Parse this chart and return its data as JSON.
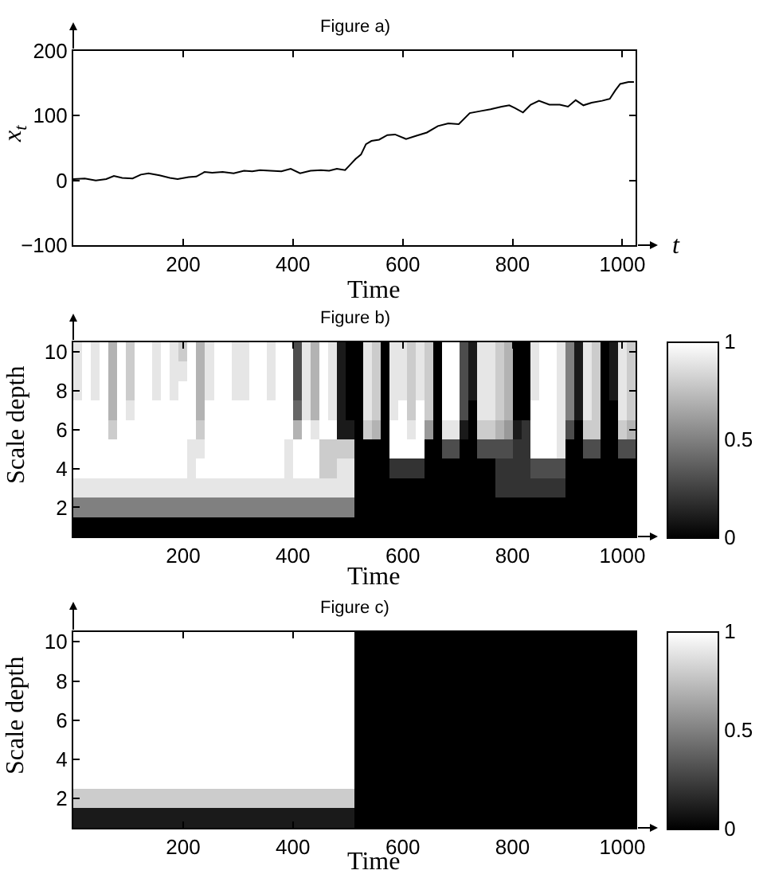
{
  "chart_data": [
    {
      "type": "line",
      "title": "Figure a)",
      "xlabel": "Time",
      "ylabel": "x$_{t}$",
      "annotations": [
        "t"
      ],
      "color": "#000000",
      "line_style": "solid",
      "x": [
        0,
        21,
        41,
        60,
        74,
        89,
        108,
        123,
        137,
        157,
        176,
        190,
        210,
        224,
        239,
        253,
        272,
        292,
        311,
        326,
        340,
        359,
        379,
        396,
        413,
        432,
        451,
        466,
        480,
        495,
        504,
        514,
        524,
        533,
        543,
        557,
        572,
        586,
        606,
        625,
        644,
        664,
        683,
        702,
        722,
        741,
        760,
        780,
        794,
        804,
        819,
        833,
        848,
        867,
        886,
        901,
        915,
        929,
        944,
        963,
        977,
        987,
        996,
        1011,
        1021
      ],
      "values": [
        2,
        3,
        0,
        2,
        7,
        4,
        3,
        9,
        11,
        8,
        4,
        2,
        5,
        6,
        13,
        12,
        13,
        11,
        15,
        14,
        16,
        15,
        14,
        18,
        11,
        15,
        16,
        15,
        18,
        16,
        24,
        33,
        40,
        56,
        61,
        63,
        70,
        71,
        64,
        69,
        74,
        84,
        88,
        87,
        104,
        107,
        110,
        114,
        116,
        112,
        105,
        117,
        123,
        117,
        117,
        114,
        124,
        116,
        120,
        123,
        126,
        139,
        149,
        152,
        152
      ],
      "xlim": [
        0,
        1024
      ],
      "xticks": [
        200,
        400,
        600,
        800,
        1000
      ],
      "ylim": [
        -100,
        200
      ],
      "yticks": [
        -100,
        0,
        100,
        200
      ]
    },
    {
      "type": "heatmap",
      "title": "Figure b)",
      "xlabel": "Time",
      "ylabel": "Scale depth",
      "x": [
        8,
        24,
        40,
        56,
        72,
        88,
        104,
        120,
        136,
        152,
        168,
        184,
        200,
        216,
        232,
        248,
        264,
        280,
        296,
        312,
        328,
        344,
        360,
        376,
        392,
        408,
        424,
        440,
        456,
        472,
        488,
        504,
        520,
        536,
        552,
        568,
        584,
        600,
        616,
        632,
        648,
        664,
        680,
        696,
        712,
        728,
        744,
        760,
        776,
        792,
        808,
        824,
        840,
        856,
        872,
        888,
        904,
        920,
        936,
        952,
        968,
        984,
        1000,
        1016
      ],
      "y_categories": [
        "10",
        null,
        "8",
        null,
        "6",
        null,
        "4",
        null,
        "2",
        null
      ],
      "cells": [
        [
          0.9,
          1,
          0.9,
          1,
          0.7,
          1,
          0.8,
          1,
          1,
          0.9,
          1,
          0.9,
          0.8,
          1,
          0.7,
          0.9,
          1,
          1,
          0.9,
          0.9,
          1,
          1,
          0.9,
          1,
          1,
          0.3,
          0.9,
          0.7,
          1,
          0.9,
          0.1,
          0,
          0,
          0.9,
          0.8,
          0,
          0.9,
          0.9,
          0.8,
          0.9,
          0.8,
          0,
          1,
          1,
          0.3,
          0.1,
          0.9,
          0.9,
          0.8,
          0.7,
          0,
          0,
          0.9,
          1,
          1,
          0.9,
          0.5,
          0.1,
          0.9,
          0.8,
          0,
          0.1,
          0.9,
          0.8
        ],
        [
          0.9,
          1,
          0.9,
          1,
          0.7,
          1,
          0.8,
          1,
          1,
          0.9,
          1,
          0.9,
          0.9,
          1,
          0.7,
          0.9,
          1,
          1,
          0.9,
          0.9,
          1,
          1,
          0.9,
          1,
          1,
          0.3,
          0.9,
          0.7,
          1,
          0.9,
          0.1,
          0,
          0,
          0.9,
          0.8,
          0,
          0.9,
          0.9,
          0.8,
          0.9,
          0.8,
          0,
          1,
          1,
          0.3,
          0.1,
          0.9,
          0.9,
          0.8,
          0.7,
          0,
          0,
          0.9,
          1,
          1,
          0.9,
          0.5,
          0.1,
          0.9,
          0.8,
          0,
          0.1,
          0.9,
          0.8
        ],
        [
          0.9,
          1,
          0.9,
          1,
          0.7,
          1,
          0.8,
          1,
          1,
          0.9,
          1,
          0.9,
          1,
          1,
          0.7,
          0.9,
          1,
          1,
          0.9,
          0.9,
          1,
          1,
          0.9,
          1,
          1,
          0.3,
          0.9,
          0.7,
          1,
          0.9,
          0.1,
          0,
          0,
          0.9,
          0.8,
          0,
          0.9,
          0.9,
          0.8,
          0.9,
          0.8,
          0,
          1,
          1,
          0.3,
          0.1,
          0.9,
          0.9,
          0.8,
          0.7,
          0,
          0,
          0.9,
          1,
          1,
          0.9,
          0.5,
          0.1,
          0.9,
          0.8,
          0,
          0.1,
          0.9,
          0.8
        ],
        [
          1,
          1,
          1,
          1,
          0.7,
          1,
          0.9,
          1,
          1,
          1,
          1,
          1,
          1,
          1,
          0.7,
          1,
          1,
          1,
          1,
          1,
          1,
          1,
          1,
          1,
          1,
          0.4,
          0.9,
          0.7,
          1,
          0.9,
          0.1,
          0,
          0,
          0.9,
          0.8,
          0,
          0.9,
          1,
          0.8,
          1,
          0.8,
          0,
          1,
          1,
          0.3,
          0,
          0.9,
          0.9,
          0.8,
          0.7,
          0,
          0,
          1,
          1,
          1,
          0.9,
          0.5,
          0.1,
          0.9,
          0.8,
          0,
          0,
          0.9,
          0.8
        ],
        [
          1,
          1,
          1,
          1,
          0.8,
          1,
          1,
          1,
          1,
          1,
          1,
          1,
          1,
          1,
          0.8,
          1,
          1,
          1,
          1,
          1,
          1,
          1,
          1,
          1,
          1,
          0.7,
          1,
          0.9,
          1,
          1,
          0.1,
          0.1,
          0,
          0.8,
          0.7,
          0,
          1,
          1,
          0.9,
          1,
          0.6,
          0,
          0.9,
          0.9,
          0.1,
          0,
          0.8,
          0.8,
          0.7,
          0.6,
          0.1,
          0.2,
          1,
          1,
          1,
          0.9,
          0.3,
          0,
          0.8,
          0.8,
          0,
          0,
          0.8,
          0.7
        ],
        [
          1,
          1,
          1,
          1,
          1,
          1,
          1,
          1,
          1,
          1,
          1,
          1,
          1,
          0.9,
          0.9,
          1,
          1,
          1,
          1,
          1,
          1,
          1,
          1,
          1,
          0.9,
          1,
          1,
          1,
          0.8,
          0.8,
          0.8,
          0.8,
          0,
          0,
          0,
          0,
          1,
          1,
          1,
          1,
          0,
          0,
          0.3,
          0.3,
          0,
          0,
          0.3,
          0.3,
          0.3,
          0.3,
          0.2,
          0.2,
          1,
          1,
          1,
          0.9,
          0,
          0,
          0.3,
          0.3,
          0,
          0,
          0.3,
          0.3
        ],
        [
          1,
          1,
          1,
          1,
          1,
          1,
          1,
          1,
          1,
          1,
          1,
          1,
          1,
          0.9,
          1,
          1,
          1,
          1,
          1,
          1,
          1,
          1,
          1,
          1,
          0.9,
          1,
          1,
          1,
          0.8,
          0.8,
          0.9,
          0.9,
          0,
          0,
          0,
          0,
          0.2,
          0.2,
          0.2,
          0.2,
          0,
          0,
          0,
          0,
          0,
          0,
          0,
          0,
          0.2,
          0.2,
          0.2,
          0.2,
          0.3,
          0.3,
          0.3,
          0.3,
          0,
          0,
          0,
          0,
          0,
          0,
          0,
          0
        ],
        [
          0.9,
          0.9,
          0.9,
          0.9,
          0.9,
          0.9,
          0.9,
          0.9,
          0.9,
          0.9,
          0.9,
          0.9,
          0.9,
          0.9,
          0.9,
          0.9,
          0.9,
          0.9,
          0.9,
          0.9,
          0.9,
          0.9,
          0.9,
          0.9,
          0.9,
          0.9,
          0.9,
          0.9,
          0.9,
          0.9,
          0.9,
          0.9,
          0,
          0,
          0,
          0,
          0,
          0,
          0,
          0,
          0,
          0,
          0,
          0,
          0,
          0,
          0,
          0,
          0.2,
          0.2,
          0.2,
          0.2,
          0.2,
          0.2,
          0.2,
          0.2,
          0,
          0,
          0,
          0,
          0,
          0,
          0,
          0
        ],
        [
          0.5,
          0.5,
          0.5,
          0.5,
          0.5,
          0.5,
          0.5,
          0.5,
          0.5,
          0.5,
          0.5,
          0.5,
          0.5,
          0.5,
          0.5,
          0.5,
          0.5,
          0.5,
          0.5,
          0.5,
          0.5,
          0.5,
          0.5,
          0.5,
          0.5,
          0.5,
          0.5,
          0.5,
          0.5,
          0.5,
          0.5,
          0.5,
          0,
          0,
          0,
          0,
          0,
          0,
          0,
          0,
          0,
          0,
          0,
          0,
          0,
          0,
          0,
          0,
          0,
          0,
          0,
          0,
          0,
          0,
          0,
          0,
          0,
          0,
          0,
          0,
          0,
          0,
          0,
          0
        ],
        [
          0,
          0,
          0,
          0,
          0,
          0,
          0,
          0,
          0,
          0,
          0,
          0,
          0,
          0,
          0,
          0,
          0,
          0,
          0,
          0,
          0,
          0,
          0,
          0,
          0,
          0,
          0,
          0,
          0,
          0,
          0,
          0,
          0,
          0,
          0,
          0,
          0,
          0,
          0,
          0,
          0,
          0,
          0,
          0,
          0,
          0,
          0,
          0,
          0,
          0,
          0,
          0,
          0,
          0,
          0,
          0,
          0,
          0,
          0,
          0,
          0,
          0,
          0,
          0
        ]
      ],
      "xlim": [
        0,
        1024
      ],
      "xticks": [
        200,
        400,
        600,
        800,
        1000
      ],
      "clim": [
        0,
        1
      ],
      "cticks": [
        0,
        0.5,
        1
      ]
    },
    {
      "type": "heatmap",
      "title": "Figure c)",
      "xlabel": "Time",
      "ylabel": "Scale depth",
      "x": [
        16,
        48,
        80,
        112,
        144,
        176,
        208,
        240,
        272,
        304,
        336,
        368,
        400,
        432,
        464,
        496,
        528,
        560,
        592,
        624,
        656,
        688,
        720,
        752,
        784,
        816,
        848,
        880,
        912,
        944,
        976,
        1008
      ],
      "y_categories": [
        "10",
        null,
        "8",
        null,
        "6",
        null,
        "4",
        null,
        "2",
        null
      ],
      "cells": [
        [
          1,
          1,
          1,
          1,
          1,
          1,
          1,
          1,
          1,
          1,
          1,
          1,
          1,
          1,
          1,
          1,
          0,
          0,
          0,
          0,
          0,
          0,
          0,
          0,
          0,
          0,
          0,
          0,
          0,
          0,
          0,
          0
        ],
        [
          1,
          1,
          1,
          1,
          1,
          1,
          1,
          1,
          1,
          1,
          1,
          1,
          1,
          1,
          1,
          1,
          0,
          0,
          0,
          0,
          0,
          0,
          0,
          0,
          0,
          0,
          0,
          0,
          0,
          0,
          0,
          0
        ],
        [
          1,
          1,
          1,
          1,
          1,
          1,
          1,
          1,
          1,
          1,
          1,
          1,
          1,
          1,
          1,
          1,
          0,
          0,
          0,
          0,
          0,
          0,
          0,
          0,
          0,
          0,
          0,
          0,
          0,
          0,
          0,
          0
        ],
        [
          1,
          1,
          1,
          1,
          1,
          1,
          1,
          1,
          1,
          1,
          1,
          1,
          1,
          1,
          1,
          1,
          0,
          0,
          0,
          0,
          0,
          0,
          0,
          0,
          0,
          0,
          0,
          0,
          0,
          0,
          0,
          0
        ],
        [
          1,
          1,
          1,
          1,
          1,
          1,
          1,
          1,
          1,
          1,
          1,
          1,
          1,
          1,
          1,
          1,
          0,
          0,
          0,
          0,
          0,
          0,
          0,
          0,
          0,
          0,
          0,
          0,
          0,
          0,
          0,
          0
        ],
        [
          1,
          1,
          1,
          1,
          1,
          1,
          1,
          1,
          1,
          1,
          1,
          1,
          1,
          1,
          1,
          1,
          0,
          0,
          0,
          0,
          0,
          0,
          0,
          0,
          0,
          0,
          0,
          0,
          0,
          0,
          0,
          0
        ],
        [
          1,
          1,
          1,
          1,
          1,
          1,
          1,
          1,
          1,
          1,
          1,
          1,
          1,
          1,
          1,
          1,
          0,
          0,
          0,
          0,
          0,
          0,
          0,
          0,
          0,
          0,
          0,
          0,
          0,
          0,
          0,
          0
        ],
        [
          1,
          1,
          1,
          1,
          1,
          1,
          1,
          1,
          1,
          1,
          1,
          1,
          1,
          1,
          1,
          1,
          0,
          0,
          0,
          0,
          0,
          0,
          0,
          0,
          0,
          0,
          0,
          0,
          0,
          0,
          0,
          0
        ],
        [
          0.8,
          0.8,
          0.8,
          0.8,
          0.8,
          0.8,
          0.8,
          0.8,
          0.8,
          0.8,
          0.8,
          0.8,
          0.8,
          0.8,
          0.8,
          0.8,
          0,
          0,
          0,
          0,
          0,
          0,
          0,
          0,
          0,
          0,
          0,
          0,
          0,
          0,
          0,
          0
        ],
        [
          0.1,
          0.1,
          0.1,
          0.1,
          0.1,
          0.1,
          0.1,
          0.1,
          0.1,
          0.1,
          0.1,
          0.1,
          0.1,
          0.1,
          0.1,
          0.1,
          0,
          0,
          0,
          0,
          0,
          0,
          0,
          0,
          0,
          0,
          0,
          0,
          0,
          0,
          0,
          0
        ]
      ],
      "xlim": [
        0,
        1024
      ],
      "xticks": [
        200,
        400,
        600,
        800,
        1000
      ],
      "clim": [
        0,
        1
      ],
      "cticks": [
        0,
        0.5,
        1
      ]
    }
  ]
}
